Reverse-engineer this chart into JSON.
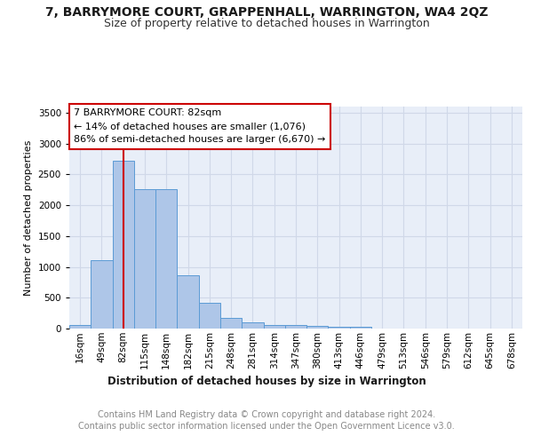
{
  "title": "7, BARRYMORE COURT, GRAPPENHALL, WARRINGTON, WA4 2QZ",
  "subtitle": "Size of property relative to detached houses in Warrington",
  "xlabel": "Distribution of detached houses by size in Warrington",
  "ylabel": "Number of detached properties",
  "footer_line1": "Contains HM Land Registry data © Crown copyright and database right 2024.",
  "footer_line2": "Contains public sector information licensed under the Open Government Licence v3.0.",
  "annotation_line1": "7 BARRYMORE COURT: 82sqm",
  "annotation_line2": "← 14% of detached houses are smaller (1,076)",
  "annotation_line3": "86% of semi-detached houses are larger (6,670) →",
  "bar_labels": [
    "16sqm",
    "49sqm",
    "82sqm",
    "115sqm",
    "148sqm",
    "182sqm",
    "215sqm",
    "248sqm",
    "281sqm",
    "314sqm",
    "347sqm",
    "380sqm",
    "413sqm",
    "446sqm",
    "479sqm",
    "513sqm",
    "546sqm",
    "579sqm",
    "612sqm",
    "645sqm",
    "678sqm"
  ],
  "bar_values": [
    55,
    1105,
    2720,
    2260,
    2260,
    870,
    415,
    175,
    100,
    60,
    60,
    45,
    35,
    30,
    0,
    0,
    0,
    0,
    0,
    0,
    0
  ],
  "bar_color": "#aec6e8",
  "bar_edge_color": "#5b9bd5",
  "highlight_bar_index": 2,
  "highlight_line_color": "#cc0000",
  "ylim": [
    0,
    3600
  ],
  "yticks": [
    0,
    500,
    1000,
    1500,
    2000,
    2500,
    3000,
    3500
  ],
  "grid_color": "#d0d8e8",
  "bg_color": "#e8eef8",
  "annotation_box_edge": "#cc0000",
  "title_fontsize": 10,
  "subtitle_fontsize": 9,
  "xlabel_fontsize": 8.5,
  "ylabel_fontsize": 8,
  "tick_fontsize": 7.5,
  "footer_fontsize": 7,
  "annotation_fontsize": 8
}
